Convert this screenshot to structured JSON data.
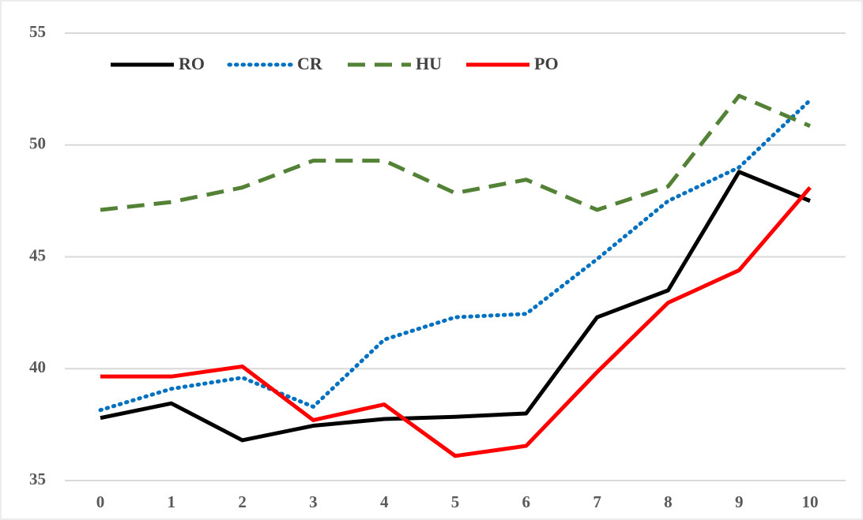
{
  "chart_data": {
    "type": "line",
    "x": [
      0,
      1,
      2,
      3,
      4,
      5,
      6,
      7,
      8,
      9,
      10
    ],
    "xlim": [
      0,
      10
    ],
    "series": [
      {
        "name": "RO",
        "color": "#000000",
        "dash": "solid",
        "values": [
          37.8,
          38.45,
          36.8,
          37.45,
          37.75,
          37.85,
          38.0,
          42.3,
          43.5,
          48.8,
          47.5
        ]
      },
      {
        "name": "CR",
        "color": "#0070c0",
        "dash": "dotted",
        "values": [
          38.15,
          39.1,
          39.6,
          38.3,
          41.3,
          42.3,
          42.45,
          44.9,
          47.5,
          49.0,
          52.0
        ]
      },
      {
        "name": "HU",
        "color": "#538135",
        "dash": "dashed",
        "values": [
          47.1,
          47.45,
          48.1,
          49.3,
          49.3,
          47.85,
          48.45,
          47.1,
          48.15,
          52.2,
          50.85
        ]
      },
      {
        "name": "PO",
        "color": "#ff0000",
        "dash": "solid",
        "values": [
          39.65,
          39.65,
          40.1,
          37.7,
          38.4,
          36.1,
          36.55,
          39.85,
          42.95,
          44.4,
          48.1
        ]
      }
    ],
    "ylim": [
      35,
      55
    ],
    "yticks": [
      35,
      40,
      45,
      50,
      55
    ],
    "grid": true,
    "legend": "top-left"
  }
}
